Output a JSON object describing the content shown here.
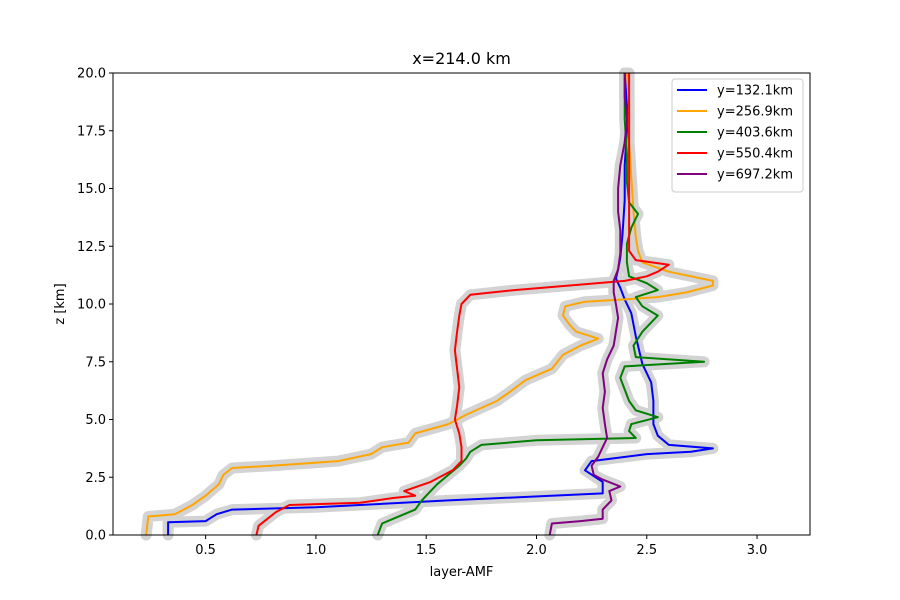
{
  "chart_data": {
    "type": "line",
    "title": "x=214.0 km",
    "xlabel": "layer-AMF",
    "ylabel": "z [km]",
    "xlim": [
      0.08,
      3.24
    ],
    "ylim": [
      0,
      20
    ],
    "xticks": [
      "0.5",
      "1.0",
      "1.5",
      "2.0",
      "2.5",
      "3.0"
    ],
    "yticks": [
      "0.0",
      "2.5",
      "5.0",
      "7.5",
      "10.0",
      "12.5",
      "15.0",
      "17.5",
      "20.0"
    ],
    "grid": false,
    "legend_position": "top-right",
    "uncertainty_band_color": "#d3d3d3",
    "series": [
      {
        "name": "y=132.1km",
        "color": "#0000ff",
        "points": [
          [
            0.33,
            0
          ],
          [
            0.33,
            0.55
          ],
          [
            0.5,
            0.6
          ],
          [
            0.55,
            0.9
          ],
          [
            0.62,
            1.1
          ],
          [
            1.0,
            1.2
          ],
          [
            1.6,
            1.5
          ],
          [
            2.3,
            1.8
          ],
          [
            2.3,
            2.3
          ],
          [
            2.22,
            2.8
          ],
          [
            2.25,
            3.2
          ],
          [
            2.5,
            3.5
          ],
          [
            2.7,
            3.6
          ],
          [
            2.8,
            3.75
          ],
          [
            2.6,
            3.9
          ],
          [
            2.55,
            4.3
          ],
          [
            2.53,
            4.8
          ],
          [
            2.53,
            5.8
          ],
          [
            2.52,
            6.6
          ],
          [
            2.48,
            7.4
          ],
          [
            2.45,
            8.6
          ],
          [
            2.43,
            9.6
          ],
          [
            2.4,
            10.2
          ],
          [
            2.38,
            10.7
          ],
          [
            2.36,
            11.1
          ],
          [
            2.37,
            11.5
          ],
          [
            2.38,
            12.0
          ],
          [
            2.39,
            13.0
          ],
          [
            2.4,
            14.5
          ],
          [
            2.4,
            16.0
          ],
          [
            2.41,
            17.5
          ],
          [
            2.41,
            18.6
          ],
          [
            2.4,
            20.0
          ]
        ]
      },
      {
        "name": "y=256.9km",
        "color": "#ffa500",
        "points": [
          [
            0.23,
            0
          ],
          [
            0.24,
            0.8
          ],
          [
            0.36,
            0.9
          ],
          [
            0.44,
            1.3
          ],
          [
            0.5,
            1.7
          ],
          [
            0.56,
            2.2
          ],
          [
            0.58,
            2.6
          ],
          [
            0.62,
            2.9
          ],
          [
            0.8,
            3.0
          ],
          [
            1.1,
            3.2
          ],
          [
            1.25,
            3.5
          ],
          [
            1.3,
            3.8
          ],
          [
            1.42,
            4.0
          ],
          [
            1.45,
            4.4
          ],
          [
            1.6,
            4.8
          ],
          [
            1.68,
            5.2
          ],
          [
            1.75,
            5.5
          ],
          [
            1.82,
            5.8
          ],
          [
            1.88,
            6.2
          ],
          [
            1.95,
            6.7
          ],
          [
            2.07,
            7.2
          ],
          [
            2.12,
            7.8
          ],
          [
            2.2,
            8.2
          ],
          [
            2.28,
            8.5
          ],
          [
            2.18,
            8.8
          ],
          [
            2.15,
            9.1
          ],
          [
            2.12,
            9.5
          ],
          [
            2.13,
            9.9
          ],
          [
            2.22,
            10.1
          ],
          [
            2.4,
            10.2
          ],
          [
            2.55,
            10.3
          ],
          [
            2.68,
            10.5
          ],
          [
            2.8,
            10.8
          ],
          [
            2.8,
            11.0
          ],
          [
            2.6,
            11.4
          ],
          [
            2.48,
            11.8
          ],
          [
            2.46,
            12.3
          ],
          [
            2.45,
            12.9
          ],
          [
            2.44,
            14.0
          ],
          [
            2.43,
            15.5
          ],
          [
            2.42,
            17.0
          ],
          [
            2.42,
            18.8
          ],
          [
            2.41,
            20.0
          ]
        ]
      },
      {
        "name": "y=403.6km",
        "color": "#008000",
        "points": [
          [
            1.28,
            0
          ],
          [
            1.3,
            0.5
          ],
          [
            1.35,
            0.7
          ],
          [
            1.4,
            0.9
          ],
          [
            1.45,
            1.1
          ],
          [
            1.48,
            1.5
          ],
          [
            1.52,
            1.9
          ],
          [
            1.55,
            2.2
          ],
          [
            1.6,
            2.6
          ],
          [
            1.65,
            3.0
          ],
          [
            1.68,
            3.3
          ],
          [
            1.7,
            3.6
          ],
          [
            1.75,
            3.9
          ],
          [
            2.0,
            4.1
          ],
          [
            2.45,
            4.2
          ],
          [
            2.42,
            4.5
          ],
          [
            2.43,
            4.8
          ],
          [
            2.55,
            5.1
          ],
          [
            2.45,
            5.4
          ],
          [
            2.42,
            5.8
          ],
          [
            2.4,
            6.3
          ],
          [
            2.38,
            6.8
          ],
          [
            2.4,
            7.3
          ],
          [
            2.76,
            7.5
          ],
          [
            2.45,
            7.7
          ],
          [
            2.44,
            8.2
          ],
          [
            2.48,
            8.8
          ],
          [
            2.55,
            9.5
          ],
          [
            2.48,
            9.9
          ],
          [
            2.45,
            10.3
          ],
          [
            2.55,
            10.6
          ],
          [
            2.5,
            10.9
          ],
          [
            2.42,
            11.2
          ],
          [
            2.41,
            11.8
          ],
          [
            2.41,
            12.6
          ],
          [
            2.43,
            13.3
          ],
          [
            2.46,
            13.9
          ],
          [
            2.42,
            14.4
          ],
          [
            2.41,
            15.3
          ],
          [
            2.41,
            16.5
          ],
          [
            2.4,
            18.0
          ],
          [
            2.4,
            20.0
          ]
        ]
      },
      {
        "name": "y=550.4km",
        "color": "#ff0000",
        "points": [
          [
            0.73,
            0
          ],
          [
            0.74,
            0.4
          ],
          [
            0.78,
            0.7
          ],
          [
            0.82,
            1.0
          ],
          [
            0.88,
            1.3
          ],
          [
            1.2,
            1.4
          ],
          [
            1.35,
            1.6
          ],
          [
            1.45,
            1.7
          ],
          [
            1.4,
            1.9
          ],
          [
            1.52,
            2.3
          ],
          [
            1.58,
            2.6
          ],
          [
            1.62,
            2.8
          ],
          [
            1.66,
            3.2
          ],
          [
            1.66,
            3.8
          ],
          [
            1.65,
            4.4
          ],
          [
            1.63,
            5.0
          ],
          [
            1.64,
            5.6
          ],
          [
            1.65,
            6.4
          ],
          [
            1.64,
            7.2
          ],
          [
            1.63,
            8.0
          ],
          [
            1.64,
            8.8
          ],
          [
            1.65,
            9.5
          ],
          [
            1.66,
            10.0
          ],
          [
            1.7,
            10.4
          ],
          [
            1.9,
            10.6
          ],
          [
            2.15,
            10.8
          ],
          [
            2.4,
            11.0
          ],
          [
            2.5,
            11.2
          ],
          [
            2.55,
            11.4
          ],
          [
            2.6,
            11.7
          ],
          [
            2.45,
            11.9
          ],
          [
            2.42,
            12.3
          ],
          [
            2.42,
            13.5
          ],
          [
            2.42,
            15.0
          ],
          [
            2.42,
            17.0
          ],
          [
            2.42,
            18.5
          ],
          [
            2.42,
            20.0
          ]
        ]
      },
      {
        "name": "y=697.2km",
        "color": "#800080",
        "points": [
          [
            2.06,
            0
          ],
          [
            2.07,
            0.5
          ],
          [
            2.2,
            0.6
          ],
          [
            2.3,
            0.7
          ],
          [
            2.3,
            1.1
          ],
          [
            2.34,
            1.5
          ],
          [
            2.33,
            1.9
          ],
          [
            2.38,
            2.1
          ],
          [
            2.3,
            2.4
          ],
          [
            2.26,
            2.6
          ],
          [
            2.25,
            3.0
          ],
          [
            2.28,
            3.4
          ],
          [
            2.3,
            3.8
          ],
          [
            2.32,
            4.2
          ],
          [
            2.31,
            4.8
          ],
          [
            2.3,
            5.5
          ],
          [
            2.31,
            6.2
          ],
          [
            2.3,
            7.0
          ],
          [
            2.32,
            7.6
          ],
          [
            2.35,
            8.2
          ],
          [
            2.36,
            8.8
          ],
          [
            2.37,
            9.4
          ],
          [
            2.36,
            10.0
          ],
          [
            2.35,
            10.5
          ],
          [
            2.35,
            11.0
          ],
          [
            2.37,
            11.5
          ],
          [
            2.38,
            12.2
          ],
          [
            2.38,
            13.2
          ],
          [
            2.37,
            14.0
          ],
          [
            2.37,
            15.0
          ],
          [
            2.38,
            16.0
          ],
          [
            2.4,
            17.0
          ],
          [
            2.41,
            18.0
          ],
          [
            2.4,
            19.0
          ],
          [
            2.4,
            20.0
          ]
        ]
      }
    ]
  }
}
